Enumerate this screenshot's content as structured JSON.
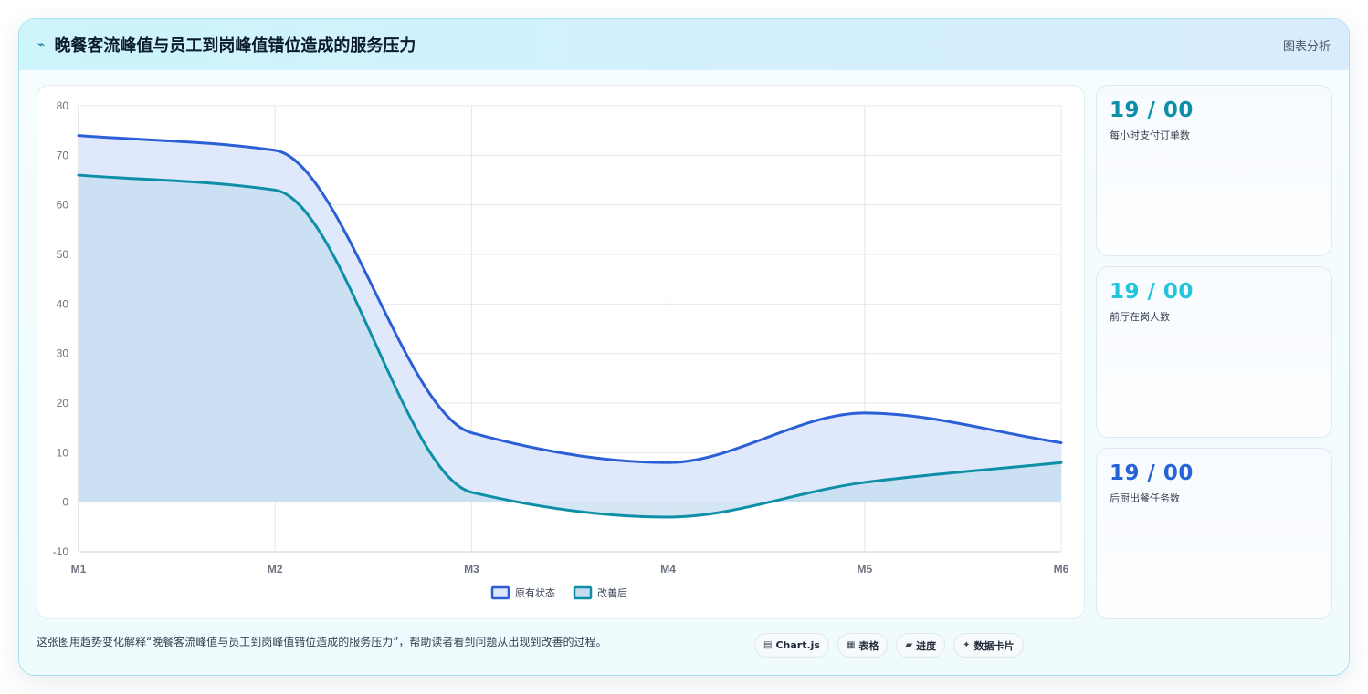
{
  "header": {
    "title": "晚餐客流峰值与员工到岗峰值错位造成的服务压力",
    "tag": "图表分析"
  },
  "icons": {
    "title": "trend-zigzag-icon"
  },
  "stats": [
    {
      "value": "19 / 00",
      "label": "每小时支付订单数",
      "color": "#0e8fa8"
    },
    {
      "value": "19 / 00",
      "label": "前厅在岗人数",
      "color": "#22c5dc"
    },
    {
      "value": "19 / 00",
      "label": "后厨出餐任务数",
      "color": "#2563d6"
    }
  ],
  "footer": {
    "text": "这张图用趋势变化解释“晚餐客流峰值与员工到岗峰值错位造成的服务压力”，帮助读者看到问题从出现到改善的过程。"
  },
  "pills": [
    {
      "icon": "▤",
      "label": "Chart.js"
    },
    {
      "icon": "▦",
      "label": "表格"
    },
    {
      "icon": "▰",
      "label": "进度"
    },
    {
      "icon": "✦",
      "label": "数据卡片"
    }
  ],
  "chart_data": {
    "type": "area",
    "categories": [
      "M1",
      "M2",
      "M3",
      "M4",
      "M5",
      "M6"
    ],
    "ylim": [
      -10,
      80
    ],
    "yticks": [
      -10,
      0,
      10,
      20,
      30,
      40,
      50,
      60,
      70,
      80
    ],
    "grid": true,
    "legend": "bottom",
    "series": [
      {
        "name": "原有状态",
        "values": [
          74,
          71,
          14,
          8,
          18,
          12
        ],
        "color": "#2b5fd6",
        "fill": "#dde7fb"
      },
      {
        "name": "改善后",
        "values": [
          66,
          63,
          2,
          -3,
          4,
          8
        ],
        "color": "#0e8fa8",
        "fill": "#c5dcf0"
      }
    ]
  }
}
